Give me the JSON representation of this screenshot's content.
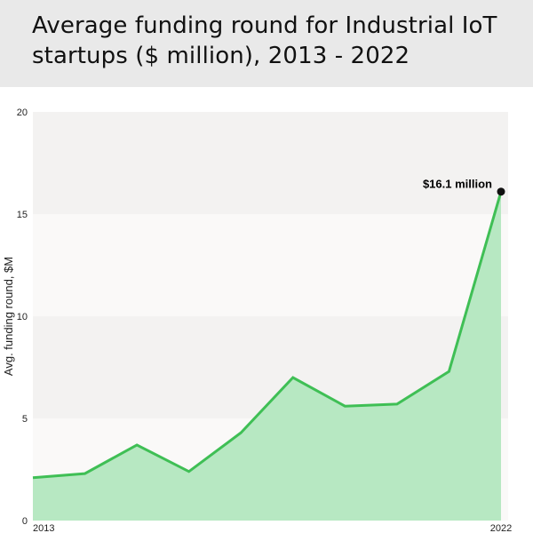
{
  "title": "Average funding round for Industrial IoT startups ($ million), 2013 - 2022",
  "colors": {
    "title_band": "#e9e9e9",
    "band_dark": "#f3f2f1",
    "band_light": "#faf9f8",
    "line": "#3fbf55",
    "fill": "#b7e8c2",
    "marker": "#111111"
  },
  "chart_data": {
    "type": "area",
    "title": "Average funding round for Industrial IoT startups ($ million), 2013 - 2022",
    "x": [
      2013,
      2014,
      2015,
      2016,
      2017,
      2018,
      2019,
      2020,
      2021,
      2022
    ],
    "x_tick_labels": [
      "2013",
      "2022"
    ],
    "series": [
      {
        "values": [
          2.1,
          2.3,
          3.7,
          2.4,
          4.3,
          7.0,
          5.6,
          5.7,
          7.3,
          16.1
        ]
      }
    ],
    "ylabel": "Avg. funding round, $M",
    "xlabel": "",
    "ylim": [
      0,
      20
    ],
    "y_ticks": [
      0,
      5,
      10,
      15,
      20
    ],
    "grid": false,
    "background_bands": true,
    "annotation": {
      "text": "$16.1 million",
      "x": 2022,
      "y": 16.1
    }
  }
}
